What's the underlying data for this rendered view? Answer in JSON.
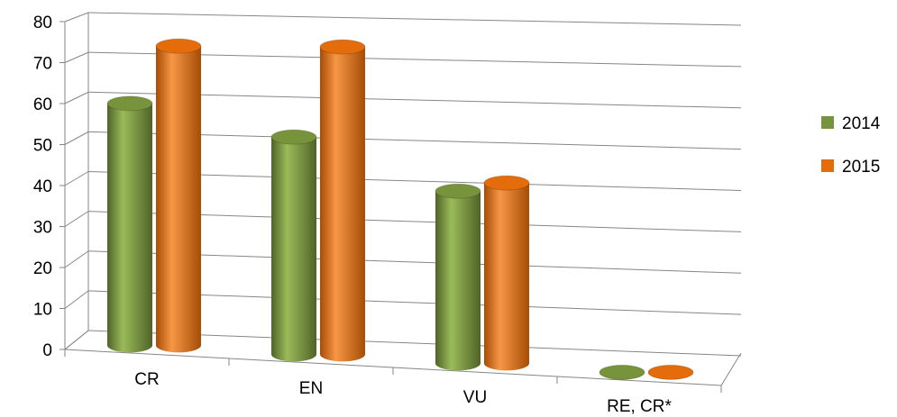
{
  "chart_data": {
    "type": "bar",
    "style": "3d-cylinder",
    "categories": [
      "CR",
      "EN",
      "VU",
      "RE, CR*"
    ],
    "series": [
      {
        "name": "2014",
        "values": [
          59,
          53,
          42,
          0
        ],
        "color": "#77933C"
      },
      {
        "name": "2015",
        "values": [
          73,
          75,
          44,
          0
        ],
        "color": "#E46C0A"
      }
    ],
    "yticks": [
      "0",
      "10",
      "20",
      "30",
      "40",
      "50",
      "60",
      "70",
      "80"
    ],
    "ylim": [
      0,
      80
    ],
    "grid": true,
    "legend_position": "right"
  }
}
